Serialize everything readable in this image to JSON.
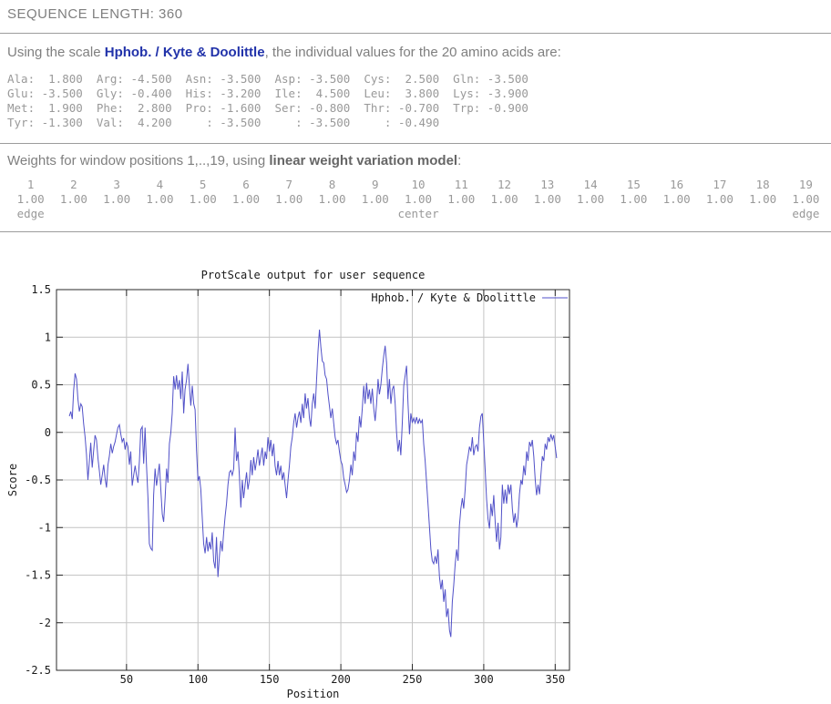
{
  "header": {
    "sequence_length_label": "SEQUENCE LENGTH: 360"
  },
  "intro": {
    "prefix": "Using the scale ",
    "scale_name": "Hphob. / Kyte & Doolittle",
    "suffix": ", the individual values for the 20 amino acids are:"
  },
  "aa_table": {
    "rows": [
      "Ala:  1.800  Arg: -4.500  Asn: -3.500  Asp: -3.500  Cys:  2.500  Gln: -3.500",
      "Glu: -3.500  Gly: -0.400  His: -3.200  Ile:  4.500  Leu:  3.800  Lys: -3.900",
      "Met:  1.900  Phe:  2.800  Pro: -1.600  Ser: -0.800  Thr: -0.700  Trp: -0.900",
      "Tyr: -1.300  Val:  4.200     : -3.500     : -3.500     : -0.490"
    ]
  },
  "weights": {
    "heading_prefix": "Weights for window positions 1,..,19, using ",
    "model_name": "linear weight variation model",
    "heading_suffix": ":",
    "positions": [
      "1",
      "2",
      "3",
      "4",
      "5",
      "6",
      "7",
      "8",
      "9",
      "10",
      "11",
      "12",
      "13",
      "14",
      "15",
      "16",
      "17",
      "18",
      "19"
    ],
    "values": [
      "1.00",
      "1.00",
      "1.00",
      "1.00",
      "1.00",
      "1.00",
      "1.00",
      "1.00",
      "1.00",
      "1.00",
      "1.00",
      "1.00",
      "1.00",
      "1.00",
      "1.00",
      "1.00",
      "1.00",
      "1.00",
      "1.00"
    ],
    "annotations": [
      {
        "index": 0,
        "label": "edge"
      },
      {
        "index": 9,
        "label": "center"
      },
      {
        "index": 18,
        "label": "edge"
      }
    ]
  },
  "colors": {
    "accent_blue": "#2233aa",
    "body_gray": "#7f7f7f",
    "table_gray": "#999999"
  },
  "chart_data": {
    "type": "line",
    "title": "ProtScale output for user sequence",
    "xlabel": "Position",
    "ylabel": "Score",
    "legend": "Hphob. / Kyte & Doolittle",
    "legend_position": "top-right",
    "grid": true,
    "xlim": [
      1,
      360
    ],
    "ylim": [
      -2.5,
      1.5
    ],
    "xticks": [
      50,
      100,
      150,
      200,
      250,
      300,
      350
    ],
    "yticks": [
      -2.5,
      -2,
      -1.5,
      -1,
      -0.5,
      0,
      0.5,
      1,
      1.5
    ],
    "line_color": "#5151c8",
    "grid_color": "#c4c4c4",
    "border_color": "#2a2a2a",
    "series": [
      {
        "name": "Hphob. / Kyte & Doolittle",
        "x_start": 10,
        "x_step": 1,
        "y": [
          0.17,
          0.22,
          0.14,
          0.44,
          0.62,
          0.56,
          0.35,
          0.22,
          0.3,
          0.27,
          0.09,
          -0.05,
          -0.23,
          -0.5,
          -0.3,
          -0.11,
          -0.37,
          -0.19,
          -0.03,
          -0.08,
          -0.27,
          -0.4,
          -0.55,
          -0.45,
          -0.34,
          -0.48,
          -0.58,
          -0.34,
          -0.25,
          -0.12,
          -0.22,
          -0.15,
          -0.1,
          -0.02,
          0.05,
          0.08,
          -0.02,
          -0.1,
          -0.06,
          -0.18,
          -0.1,
          -0.15,
          -0.34,
          -0.2,
          -0.56,
          -0.45,
          -0.35,
          -0.45,
          -0.53,
          -0.3,
          0.03,
          0.06,
          -0.33,
          0.05,
          -0.35,
          -0.69,
          -1.17,
          -1.22,
          -1.24,
          -0.66,
          -0.38,
          -0.56,
          -0.45,
          -0.33,
          -0.6,
          -0.86,
          -0.94,
          -0.69,
          -0.38,
          -0.53,
          -0.12,
          0.0,
          0.2,
          0.59,
          0.45,
          0.6,
          0.45,
          0.55,
          0.35,
          0.64,
          0.2,
          0.45,
          0.55,
          0.72,
          0.5,
          0.28,
          0.49,
          0.3,
          0.24,
          -0.19,
          -0.51,
          -0.46,
          -0.6,
          -0.9,
          -1.17,
          -1.27,
          -1.1,
          -1.25,
          -1.15,
          -1.23,
          -1.05,
          -1.35,
          -1.43,
          -1.1,
          -1.52,
          -1.3,
          -1.14,
          -1.25,
          -1.05,
          -0.88,
          -0.75,
          -0.55,
          -0.42,
          -0.4,
          -0.45,
          -0.38,
          0.05,
          -0.3,
          -0.2,
          -0.45,
          -0.79,
          -0.5,
          -0.69,
          -0.55,
          -0.42,
          -0.6,
          -0.5,
          -0.29,
          -0.45,
          -0.26,
          -0.4,
          -0.3,
          -0.18,
          -0.35,
          -0.25,
          -0.16,
          -0.35,
          -0.2,
          -0.28,
          -0.05,
          -0.2,
          -0.08,
          -0.25,
          -0.12,
          -0.35,
          -0.45,
          -0.3,
          -0.45,
          -0.35,
          -0.5,
          -0.42,
          -0.55,
          -0.69,
          -0.5,
          -0.35,
          -0.15,
          -0.05,
          0.1,
          0.2,
          0.05,
          0.15,
          0.22,
          0.1,
          0.3,
          0.15,
          0.41,
          0.25,
          0.36,
          0.15,
          0.06,
          0.3,
          0.41,
          0.25,
          0.55,
          0.85,
          1.08,
          0.9,
          0.75,
          0.73,
          0.6,
          0.56,
          0.4,
          0.28,
          0.15,
          0.25,
          0.1,
          -0.05,
          -0.12,
          -0.08,
          -0.2,
          -0.3,
          -0.34,
          -0.48,
          -0.55,
          -0.63,
          -0.6,
          -0.5,
          -0.34,
          -0.45,
          -0.2,
          -0.3,
          0.0,
          -0.1,
          0.17,
          0.05,
          0.25,
          0.49,
          0.3,
          0.52,
          0.35,
          0.45,
          0.3,
          0.46,
          0.25,
          0.12,
          0.3,
          0.56,
          0.4,
          0.5,
          0.67,
          0.8,
          0.91,
          0.73,
          0.35,
          0.56,
          0.3,
          0.45,
          0.49,
          0.3,
          0.0,
          -0.2,
          -0.08,
          -0.24,
          0.1,
          0.49,
          0.6,
          0.7,
          0.3,
          -0.02,
          0.2,
          0.1,
          0.15,
          0.1,
          0.16,
          0.09,
          0.14,
          0.1,
          0.13,
          -0.12,
          -0.3,
          -0.53,
          -0.75,
          -0.99,
          -1.23,
          -1.35,
          -1.38,
          -1.3,
          -1.38,
          -1.23,
          -1.52,
          -1.65,
          -1.55,
          -1.78,
          -1.65,
          -1.94,
          -1.85,
          -2.08,
          -2.15,
          -1.78,
          -1.6,
          -1.39,
          -1.23,
          -1.35,
          -0.98,
          -0.8,
          -0.69,
          -0.8,
          -0.6,
          -0.34,
          -0.25,
          -0.15,
          -0.2,
          -0.05,
          -0.24,
          -0.15,
          -0.13,
          -0.2,
          0.05,
          0.17,
          0.2,
          -0.1,
          -0.4,
          -0.7,
          -0.91,
          -1.01,
          -0.75,
          -0.88,
          -0.66,
          -0.95,
          -1.15,
          -0.95,
          -1.23,
          -1.1,
          -0.55,
          -0.75,
          -0.6,
          -0.75,
          -0.55,
          -0.65,
          -0.55,
          -0.8,
          -0.95,
          -0.85,
          -1.0,
          -0.9,
          -0.65,
          -0.5,
          -0.55,
          -0.35,
          -0.45,
          -0.2,
          -0.3,
          -0.1,
          -0.15,
          -0.08,
          -0.25,
          -0.5,
          -0.66,
          -0.55,
          -0.65,
          -0.45,
          -0.25,
          -0.3,
          -0.12,
          -0.18,
          -0.05,
          -0.1,
          -0.02,
          -0.08,
          -0.03,
          -0.15,
          -0.27
        ]
      }
    ]
  }
}
